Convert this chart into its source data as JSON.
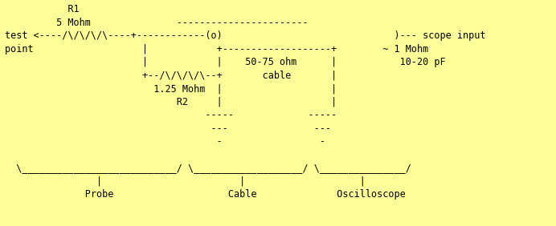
{
  "background_color": "#ffff99",
  "text_color": "#000000",
  "font_family": "monospace",
  "font_size": 8.5,
  "figwidth": 6.92,
  "figheight": 2.82,
  "dpi": 100,
  "ascii_art": [
    "            R1",
    "          5 Mohm               -----------------------",
    "test <----/\\/\\/\\/\\----+------------(o)                              )--- scope input",
    "point                   |            +-------------------+        ~ 1 Mohm",
    "                        |            |    50-75 ohm      |           10-20 pF",
    "                        +--/\\/\\/\\/\\--+       cable       |",
    "                          1.25 Mohm  |                   |",
    "                              R2     |                   |",
    "                                   -----             -----",
    "                                    ---               ---",
    "                                     -                 -",
    "",
    "  \\___________________________/ \\___________________/ \\_______________/",
    "                |                        |                    |",
    "              Probe                    Cable              Oscilloscope"
  ]
}
